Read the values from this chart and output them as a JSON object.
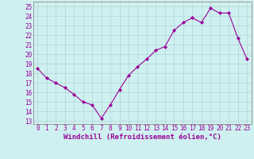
{
  "x": [
    0,
    1,
    2,
    3,
    4,
    5,
    6,
    7,
    8,
    9,
    10,
    11,
    12,
    13,
    14,
    15,
    16,
    17,
    18,
    19,
    20,
    21,
    22,
    23
  ],
  "y": [
    18.5,
    17.5,
    17.0,
    16.5,
    15.8,
    15.0,
    14.7,
    13.3,
    14.7,
    16.3,
    17.8,
    18.7,
    19.5,
    20.4,
    20.8,
    22.5,
    23.3,
    23.8,
    23.3,
    24.8,
    24.3,
    24.3,
    21.7,
    19.5
  ],
  "line_color": "#990099",
  "marker": "D",
  "marker_size": 2,
  "bg_color": "#cff0f0",
  "grid_color": "#b0d4d4",
  "xlabel": "Windchill (Refroidissement éolien,°C)",
  "xlabel_color": "#990099",
  "tick_color": "#990099",
  "yticks": [
    13,
    14,
    15,
    16,
    17,
    18,
    19,
    20,
    21,
    22,
    23,
    24,
    25
  ],
  "ylim": [
    12.7,
    25.5
  ],
  "xlim": [
    -0.5,
    23.5
  ],
  "spine_color": "#999999"
}
